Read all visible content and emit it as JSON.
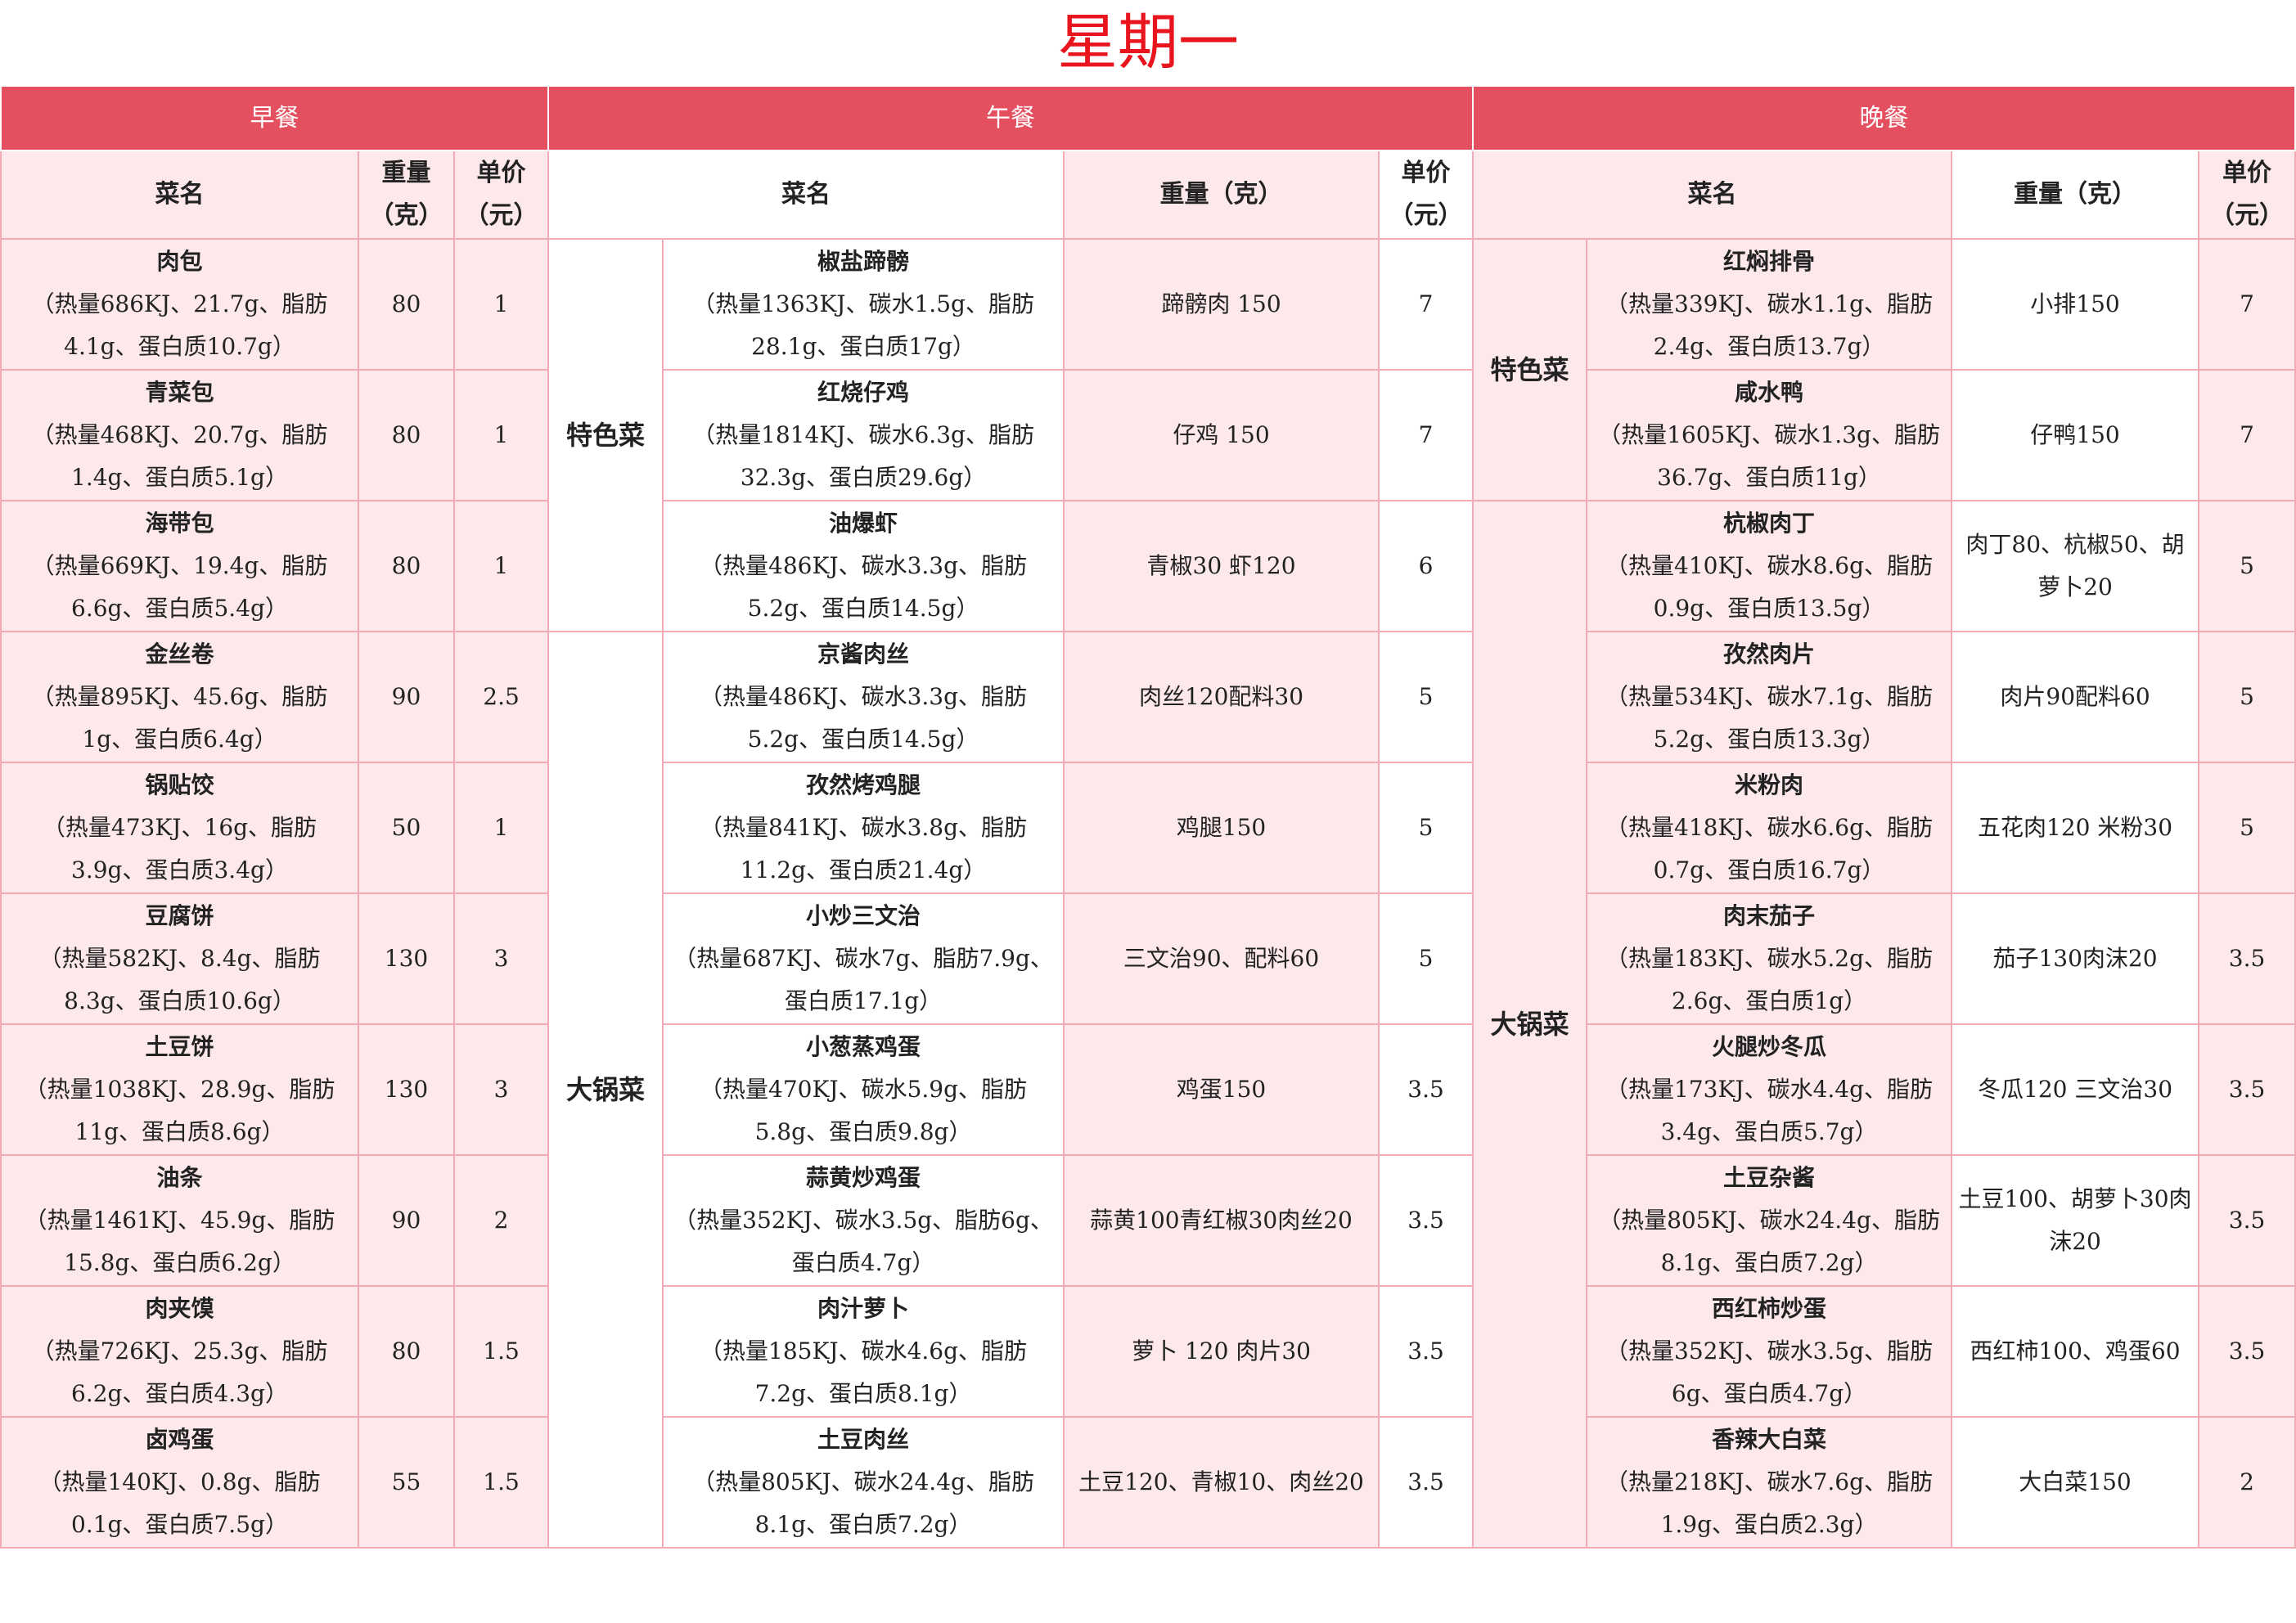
{
  "title": "星期一",
  "sections": [
    "早餐",
    "午餐",
    "晚餐"
  ],
  "headers": {
    "breakfast": [
      "菜名",
      "重量（克）",
      "单价（元）"
    ],
    "lunch": [
      "菜名",
      "重量（克）",
      "单价（元）"
    ],
    "dinner": [
      "菜名",
      "重量（克）",
      "单价（元）"
    ]
  },
  "breakfast": [
    {
      "name": "肉包",
      "info": "（热量686KJ、21.7g、脂肪4.1g、蛋白质10.7g）",
      "weight": 80,
      "price": 1
    },
    {
      "name": "青菜包",
      "info": "（热量468KJ、20.7g、脂肪1.4g、蛋白质5.1g）",
      "weight": 80,
      "price": 1
    },
    {
      "name": "海带包",
      "info": "（热量669KJ、19.4g、脂肪6.6g、蛋白质5.4g）",
      "weight": 80,
      "price": 1
    },
    {
      "name": "金丝卷",
      "info": "（热量895KJ、45.6g、脂肪1g、蛋白质6.4g）",
      "weight": 90,
      "price": 2.5
    },
    {
      "name": "锅贴饺",
      "info": "（热量473KJ、16g、脂肪3.9g、蛋白质3.4g）",
      "weight": 50,
      "price": 1
    },
    {
      "name": "豆腐饼",
      "info": "（热量582KJ、8.4g、脂肪8.3g、蛋白质10.6g）",
      "weight": 130,
      "price": 3
    },
    {
      "name": "土豆饼",
      "info": "（热量1038KJ、28.9g、脂肪11g、蛋白质8.6g）",
      "weight": 130,
      "price": 3
    },
    {
      "name": "油条",
      "info": "（热量1461KJ、45.9g、脂肪15.8g、蛋白质6.2g）",
      "weight": 90,
      "price": 2
    },
    {
      "name": "肉夹馍",
      "info": "（热量726KJ、25.3g、脂肪6.2g、蛋白质4.3g）",
      "weight": 80,
      "price": 1.5
    },
    {
      "name": "卤鸡蛋",
      "info": "（热量140KJ、0.8g、脂肪0.1g、蛋白质7.5g）",
      "weight": 55,
      "price": 1.5
    }
  ],
  "lunch": [
    {
      "category": "特色菜",
      "items": [
        {
          "name": "椒盐蹄髈",
          "info": "（热量1363KJ、碳水1.5g、脂肪28.1g、蛋白质17g）",
          "weight": "蹄髈肉 150",
          "price": 7
        },
        {
          "name": "红烧仔鸡",
          "info": "（热量1814KJ、碳水6.3g、脂肪32.3g、蛋白质29.6g）",
          "weight": "仔鸡 150",
          "price": 7
        },
        {
          "name": "油爆虾",
          "info": "（热量486KJ、碳水3.3g、脂肪5.2g、蛋白质14.5g）",
          "weight": "青椒30 虾120",
          "price": 6
        }
      ]
    },
    {
      "category": "大锅菜",
      "items": [
        {
          "name": "京酱肉丝",
          "info": "（热量486KJ、碳水3.3g、脂肪5.2g、蛋白质14.5g）",
          "weight": "肉丝120配料30",
          "price": 5
        },
        {
          "name": "孜然烤鸡腿",
          "info": "（热量841KJ、碳水3.8g、脂肪11.2g、蛋白质21.4g）",
          "weight": "鸡腿150",
          "price": 5
        },
        {
          "name": "小炒三文治",
          "info": "（热量687KJ、碳水7g、脂肪7.9g、蛋白质17.1g）",
          "weight": "三文治90、配料60",
          "price": 5
        },
        {
          "name": "小葱蒸鸡蛋",
          "info": "（热量470KJ、碳水5.9g、脂肪5.8g、蛋白质9.8g）",
          "weight": "鸡蛋150",
          "price": 3.5
        },
        {
          "name": "蒜黄炒鸡蛋",
          "info": "（热量352KJ、碳水3.5g、脂肪6g、蛋白质4.7g）",
          "weight": "蒜黄100青红椒30肉丝20",
          "price": 3.5
        },
        {
          "name": "肉汁萝卜",
          "info": "（热量185KJ、碳水4.6g、脂肪7.2g、蛋白质8.1g）",
          "weight": "萝卜 120 肉片30",
          "price": 3.5
        },
        {
          "name": "土豆肉丝",
          "info": "（热量805KJ、碳水24.4g、脂肪8.1g、蛋白质7.2g）",
          "weight": "土豆120、青椒10、肉丝20",
          "price": 3.5
        }
      ]
    }
  ],
  "dinner": [
    {
      "category": "特色菜",
      "items": [
        {
          "name": "红焖排骨",
          "info": "（热量339KJ、碳水1.1g、脂肪2.4g、蛋白质13.7g）",
          "weight": "小排150",
          "price": 7
        },
        {
          "name": "咸水鸭",
          "info": "（热量1605KJ、碳水1.3g、脂肪36.7g、蛋白质11g）",
          "weight": "仔鸭150",
          "price": 7
        }
      ]
    },
    {
      "category": "大锅菜",
      "items": [
        {
          "name": "杭椒肉丁",
          "info": "（热量410KJ、碳水8.6g、脂肪0.9g、蛋白质13.5g）",
          "weight": "肉丁80、杭椒50、胡萝卜20",
          "price": 5
        },
        {
          "name": "孜然肉片",
          "info": "（热量534KJ、碳水7.1g、脂肪5.2g、蛋白质13.3g）",
          "weight": "肉片90配料60",
          "price": 5
        },
        {
          "name": "米粉肉",
          "info": "（热量418KJ、碳水6.6g、脂肪0.7g、蛋白质16.7g）",
          "weight": "五花肉120 米粉30",
          "price": 5
        },
        {
          "name": "肉末茄子",
          "info": "（热量183KJ、碳水5.2g、脂肪2.6g、蛋白质1g）",
          "weight": "茄子130肉沫20",
          "price": 3.5
        },
        {
          "name": "火腿炒冬瓜",
          "info": "（热量173KJ、碳水4.4g、脂肪3.4g、蛋白质5.7g）",
          "weight": "冬瓜120 三文治30",
          "price": 3.5
        },
        {
          "name": "土豆杂酱",
          "info": "（热量805KJ、碳水24.4g、脂肪8.1g、蛋白质7.2g）",
          "weight": "土豆100、胡萝卜30肉沫20",
          "price": 3.5
        },
        {
          "name": "西红柿炒蛋",
          "info": "（热量352KJ、碳水3.5g、脂肪6g、蛋白质4.7g）",
          "weight": "西红柿100、鸡蛋60",
          "price": 3.5
        },
        {
          "name": "香辣大白菜",
          "info": "（热量218KJ、碳水7.6g、脂肪1.9g、蛋白质2.3g）",
          "weight": "大白菜150",
          "price": 2
        }
      ]
    }
  ]
}
